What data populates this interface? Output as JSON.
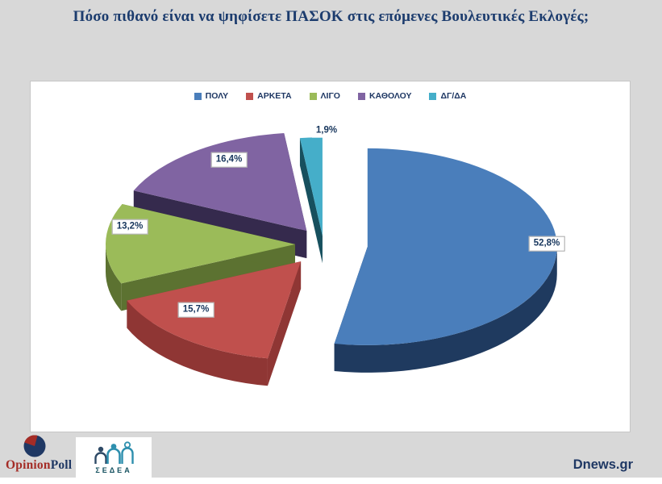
{
  "title": "Πόσο πιθανό είναι να  ψηφίσετε ΠΑΣΟΚ στις επόμενες Βουλευτικές Εκλογές;",
  "chart_data": {
    "type": "pie",
    "style": "3d-exploded",
    "title": "Πόσο πιθανό είναι να ψηφίσετε ΠΑΣΟΚ στις επόμενες Βουλευτικές Εκλογές;",
    "categories": [
      "ΠΟΛΥ",
      "ΑΡΚΕΤΑ",
      "ΛΙΓΟ",
      "ΚΑΘΟΛΟΥ",
      "ΔΓ/ΔΑ"
    ],
    "values": [
      52.8,
      15.7,
      13.2,
      16.4,
      1.9
    ],
    "labels": [
      "52,8%",
      "15,7%",
      "13,2%",
      "16,4%",
      "1,9%"
    ],
    "colors": [
      "#4a7ebb",
      "#c0504d",
      "#9bbb59",
      "#8064a2",
      "#45aec9"
    ],
    "side_colors": [
      "#1f3a5f",
      "#8f3634",
      "#5c7231",
      "#352а4d",
      "#17505e"
    ],
    "legend_position": "top-center",
    "start_angle_deg": 0,
    "direction": "clockwise"
  },
  "footer": {
    "opinionpoll": {
      "text_opinion": "Opinion",
      "text_poll": "Poll",
      "color_opinion": "#a42c26",
      "color_poll": "#1f3864"
    },
    "sedea": {
      "label": "ΣΕΔΕΑ",
      "color": "#14505f",
      "figure_color": "#2e8fae",
      "figure_dark": "#2e4a66"
    },
    "source": "Dnews.gr"
  },
  "colors": {
    "page_bg": "#d8d8d8",
    "panel_bg": "#ffffff",
    "panel_border": "#c6c6c6",
    "title_text": "#1c3c6e",
    "legend_text": "#1f3864",
    "label_text": "#17365d",
    "source_text": "#1f3864"
  }
}
